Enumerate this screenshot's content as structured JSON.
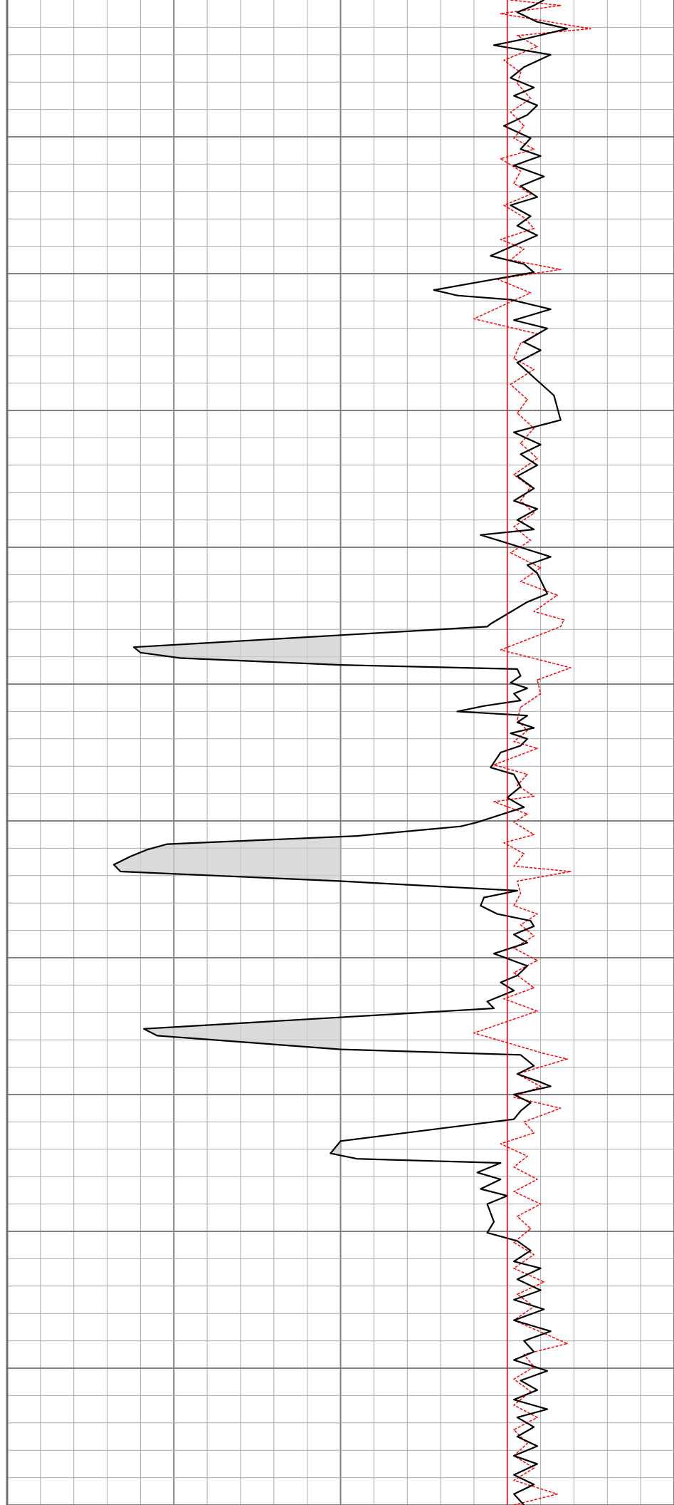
{
  "chart_data": {
    "type": "line",
    "title": "",
    "xlabel": "",
    "ylabel": "",
    "orientation": "vertical-depth",
    "xlim": [
      -15,
      5
    ],
    "ylim": [
      0,
      1100
    ],
    "grid": true,
    "grid_minor_x_step": 1,
    "grid_major_x_step": 5,
    "grid_minor_y_step": 20,
    "grid_major_y_step": 100,
    "baseline_x": 0,
    "shade_cutoff_x": -5,
    "colors": {
      "black_series": "#000000",
      "red_series": "#ff0000",
      "shade": "#cfcfcf",
      "grid": "#a9a9a9"
    },
    "series": [
      {
        "style": "solid-black",
        "color": "#000000",
        "points": [
          [
            1.1,
            0
          ],
          [
            0.8,
            4
          ],
          [
            0.3,
            9
          ],
          [
            0.9,
            16
          ],
          [
            1.8,
            21
          ],
          [
            0.6,
            28
          ],
          [
            -0.4,
            33
          ],
          [
            1.3,
            40
          ],
          [
            0.5,
            49
          ],
          [
            0.1,
            57
          ],
          [
            0.8,
            64
          ],
          [
            0.2,
            70
          ],
          [
            0.9,
            77
          ],
          [
            0.6,
            84
          ],
          [
            -0.1,
            92
          ],
          [
            0.7,
            101
          ],
          [
            0.4,
            109
          ],
          [
            1.0,
            114
          ],
          [
            0.2,
            121
          ],
          [
            1.1,
            129
          ],
          [
            0.4,
            136
          ],
          [
            0.9,
            144
          ],
          [
            0.1,
            150
          ],
          [
            0.7,
            158
          ],
          [
            0.3,
            165
          ],
          [
            0.9,
            172
          ],
          [
            -0.5,
            187
          ],
          [
            0.5,
            193
          ],
          [
            0.8,
            199
          ],
          [
            -2.2,
            212
          ],
          [
            -1.5,
            216
          ],
          [
            0.1,
            219
          ],
          [
            1.3,
            226
          ],
          [
            0.2,
            234
          ],
          [
            1.2,
            240
          ],
          [
            0.5,
            250
          ],
          [
            1.0,
            256
          ],
          [
            0.3,
            265
          ],
          [
            1.4,
            289
          ],
          [
            1.6,
            307
          ],
          [
            0.2,
            316
          ],
          [
            1.0,
            325
          ],
          [
            0.4,
            332
          ],
          [
            0.9,
            340
          ],
          [
            0.3,
            348
          ],
          [
            0.8,
            357
          ],
          [
            0.2,
            366
          ],
          [
            0.9,
            372
          ],
          [
            0.3,
            380
          ],
          [
            0.8,
            387
          ],
          [
            -0.8,
            391
          ],
          [
            0.0,
            397
          ],
          [
            1.3,
            407
          ],
          [
            0.6,
            413
          ],
          [
            0.9,
            419
          ],
          [
            1.2,
            434
          ],
          [
            0.6,
            440
          ],
          [
            -0.5,
            456
          ],
          [
            -0.6,
            458
          ],
          [
            -11.2,
            473
          ],
          [
            -11.0,
            477
          ],
          [
            -9.8,
            481
          ],
          [
            -5.0,
            486
          ],
          [
            0.3,
            489
          ],
          [
            0.4,
            494
          ],
          [
            0.1,
            499
          ],
          [
            0.6,
            503
          ],
          [
            0.2,
            507
          ],
          [
            0.4,
            512
          ],
          [
            -0.7,
            516
          ],
          [
            -1.5,
            520
          ],
          [
            0.6,
            523
          ],
          [
            0.3,
            528
          ],
          [
            0.8,
            532
          ],
          [
            0.1,
            536
          ],
          [
            0.6,
            540
          ],
          [
            0.4,
            545
          ],
          [
            -0.2,
            550
          ],
          [
            -0.5,
            561
          ],
          [
            0.2,
            566
          ],
          [
            0.4,
            575
          ],
          [
            0.0,
            583
          ],
          [
            0.5,
            590
          ],
          [
            -0.9,
            601
          ],
          [
            -1.4,
            604
          ],
          [
            -4.5,
            611
          ],
          [
            -10.2,
            617
          ],
          [
            -10.8,
            621
          ],
          [
            -11.3,
            626
          ],
          [
            -11.8,
            632
          ],
          [
            -11.6,
            637
          ],
          [
            -5.0,
            644
          ],
          [
            0.3,
            651
          ],
          [
            -0.7,
            656
          ],
          [
            -0.8,
            662
          ],
          [
            -0.3,
            668
          ],
          [
            0.7,
            673
          ],
          [
            0.8,
            677
          ],
          [
            0.2,
            683
          ],
          [
            0.6,
            689
          ],
          [
            -0.4,
            697
          ],
          [
            0.6,
            706
          ],
          [
            0.3,
            713
          ],
          [
            -0.2,
            718
          ],
          [
            0.2,
            724
          ],
          [
            -0.6,
            732
          ],
          [
            -0.4,
            737
          ],
          [
            -10.9,
            752
          ],
          [
            -10.5,
            757
          ],
          [
            -5.0,
            767
          ],
          [
            0.4,
            771
          ],
          [
            0.8,
            779
          ],
          [
            0.3,
            785
          ],
          [
            1.0,
            791
          ],
          [
            1.3,
            794
          ],
          [
            0.2,
            800
          ],
          [
            0.7,
            806
          ],
          [
            0.4,
            812
          ],
          [
            0.2,
            818
          ],
          [
            -5.0,
            834
          ],
          [
            -5.3,
            843
          ],
          [
            -4.5,
            847
          ],
          [
            -0.2,
            850
          ],
          [
            -0.9,
            857
          ],
          [
            -0.2,
            862
          ],
          [
            -0.8,
            869
          ],
          [
            0.0,
            874
          ],
          [
            -0.6,
            880
          ],
          [
            -0.4,
            893
          ],
          [
            -0.6,
            901
          ],
          [
            0.3,
            907
          ],
          [
            0.7,
            914
          ],
          [
            0.2,
            922
          ],
          [
            1.0,
            927
          ],
          [
            0.3,
            935
          ],
          [
            1.0,
            943
          ],
          [
            0.2,
            950
          ],
          [
            1.1,
            957
          ],
          [
            0.2,
            965
          ],
          [
            1.3,
            973
          ],
          [
            0.5,
            980
          ],
          [
            0.8,
            988
          ],
          [
            0.2,
            994
          ],
          [
            1.2,
            1002
          ],
          [
            0.4,
            1009
          ],
          [
            0.9,
            1016
          ],
          [
            0.2,
            1023
          ],
          [
            1.2,
            1030
          ],
          [
            0.3,
            1036
          ],
          [
            0.8,
            1043
          ],
          [
            0.3,
            1050
          ],
          [
            0.9,
            1057
          ],
          [
            0.2,
            1064
          ],
          [
            0.9,
            1070
          ],
          [
            0.2,
            1078
          ],
          [
            0.8,
            1085
          ],
          [
            0.2,
            1092
          ],
          [
            0.5,
            1100
          ]
        ]
      },
      {
        "style": "dashed-red",
        "color": "#ff0000",
        "points": [
          [
            0.1,
            0
          ],
          [
            1.6,
            4
          ],
          [
            -0.2,
            10
          ],
          [
            2.5,
            21
          ],
          [
            0.3,
            26
          ],
          [
            0.9,
            34
          ],
          [
            -0.1,
            44
          ],
          [
            0.4,
            53
          ],
          [
            0.3,
            61
          ],
          [
            0.7,
            72
          ],
          [
            0.1,
            82
          ],
          [
            0.5,
            92
          ],
          [
            0.2,
            101
          ],
          [
            0.8,
            109
          ],
          [
            -0.2,
            116
          ],
          [
            0.4,
            125
          ],
          [
            0.2,
            134
          ],
          [
            0.7,
            142
          ],
          [
            -0.1,
            150
          ],
          [
            0.5,
            159
          ],
          [
            0.8,
            167
          ],
          [
            -0.2,
            175
          ],
          [
            0.5,
            182
          ],
          [
            0.1,
            190
          ],
          [
            1.6,
            197
          ],
          [
            -0.3,
            204
          ],
          [
            0.7,
            214
          ],
          [
            -1.0,
            233
          ],
          [
            0.9,
            244
          ],
          [
            0.4,
            251
          ],
          [
            0.2,
            262
          ],
          [
            0.8,
            270
          ],
          [
            0.1,
            281
          ],
          [
            0.6,
            292
          ],
          [
            0.3,
            302
          ],
          [
            0.8,
            313
          ],
          [
            0.4,
            324
          ],
          [
            0.9,
            335
          ],
          [
            0.2,
            347
          ],
          [
            0.7,
            356
          ],
          [
            0.4,
            366
          ],
          [
            0.8,
            375
          ],
          [
            0.2,
            385
          ],
          [
            0.7,
            395
          ],
          [
            0.1,
            404
          ],
          [
            1.0,
            415
          ],
          [
            0.4,
            425
          ],
          [
            1.5,
            435
          ],
          [
            0.8,
            447
          ],
          [
            1.7,
            453
          ],
          [
            1.6,
            458
          ],
          [
            -0.2,
            475
          ],
          [
            1.9,
            488
          ],
          [
            0.9,
            497
          ],
          [
            1.0,
            507
          ],
          [
            0.4,
            517
          ],
          [
            0.3,
            526
          ],
          [
            0.6,
            534
          ],
          [
            0.2,
            542
          ],
          [
            0.9,
            547
          ],
          [
            -0.4,
            559
          ],
          [
            0.6,
            566
          ],
          [
            0.3,
            574
          ],
          [
            0.8,
            582
          ],
          [
            -0.4,
            586
          ],
          [
            0.6,
            595
          ],
          [
            0.2,
            601
          ],
          [
            0.8,
            610
          ],
          [
            -0.1,
            616
          ],
          [
            0.5,
            624
          ],
          [
            0.2,
            633
          ],
          [
            1.9,
            637
          ],
          [
            0.3,
            644
          ],
          [
            0.4,
            653
          ],
          [
            0.2,
            662
          ],
          [
            0.9,
            668
          ],
          [
            0.4,
            676
          ],
          [
            0.8,
            684
          ],
          [
            0.2,
            693
          ],
          [
            0.9,
            702
          ],
          [
            0.2,
            711
          ],
          [
            0.8,
            722
          ],
          [
            -0.1,
            730
          ],
          [
            0.9,
            739
          ],
          [
            -1.0,
            755
          ],
          [
            -0.3,
            760
          ],
          [
            1.1,
            770
          ],
          [
            1.8,
            774
          ],
          [
            0.3,
            785
          ],
          [
            1.0,
            794
          ],
          [
            0.2,
            802
          ],
          [
            1.6,
            810
          ],
          [
            0.5,
            820
          ],
          [
            0.8,
            828
          ],
          [
            -0.2,
            836
          ],
          [
            0.6,
            845
          ],
          [
            0.2,
            853
          ],
          [
            0.9,
            862
          ],
          [
            0.2,
            871
          ],
          [
            1.0,
            880
          ],
          [
            0.3,
            889
          ],
          [
            0.7,
            898
          ],
          [
            0.2,
            908
          ],
          [
            0.8,
            917
          ],
          [
            0.2,
            927
          ],
          [
            1.1,
            937
          ],
          [
            0.3,
            946
          ],
          [
            0.8,
            955
          ],
          [
            0.2,
            965
          ],
          [
            1.8,
            982
          ],
          [
            0.5,
            990
          ],
          [
            0.8,
            999
          ],
          [
            0.2,
            1008
          ],
          [
            0.7,
            1017
          ],
          [
            0.2,
            1027
          ],
          [
            0.9,
            1036
          ],
          [
            0.2,
            1045
          ],
          [
            0.6,
            1055
          ],
          [
            0.2,
            1064
          ],
          [
            0.8,
            1073
          ],
          [
            0.2,
            1082
          ],
          [
            1.5,
            1092
          ],
          [
            0.2,
            1100
          ]
        ]
      }
    ]
  }
}
